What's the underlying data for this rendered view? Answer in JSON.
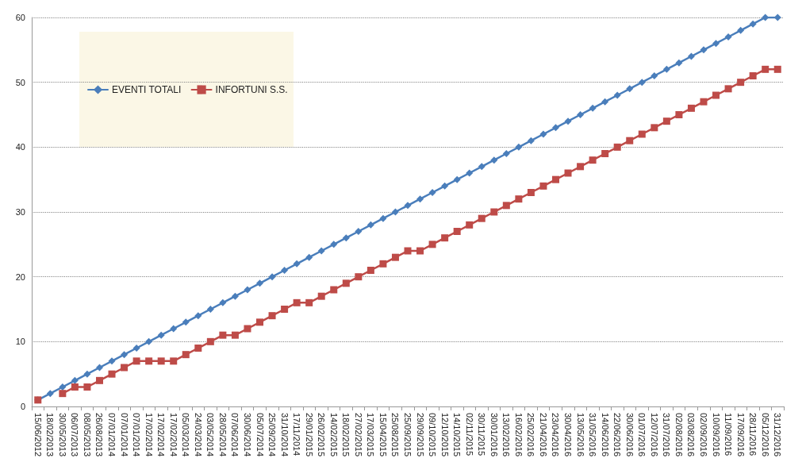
{
  "chart_data": {
    "type": "line",
    "categories": [
      "15/06/2012",
      "18/02/2013",
      "30/05/2013",
      "06/07/2013",
      "08/05/2013",
      "26/08/2013",
      "07/01/2014",
      "07/01/2014",
      "07/01/2014",
      "17/02/2014",
      "17/02/2014",
      "17/02/2014",
      "05/03/2014",
      "24/03/2014",
      "03/05/2014",
      "28/05/2014",
      "07/06/2014",
      "30/06/2014",
      "05/07/2014",
      "25/09/2014",
      "31/10/2014",
      "17/11/2014",
      "29/01/2015",
      "26/02/2015",
      "14/02/2015",
      "18/02/2015",
      "27/02/2015",
      "17/03/2015",
      "15/04/2015",
      "25/08/2015",
      "25/09/2015",
      "29/09/2015",
      "09/10/2015",
      "12/10/2015",
      "14/10/2015",
      "02/11/2015",
      "30/11/2015",
      "30/01/2016",
      "13/02/2016",
      "16/02/2016",
      "25/02/2016",
      "21/04/2016",
      "23/04/2016",
      "30/04/2016",
      "13/05/2016",
      "31/05/2016",
      "14/06/2016",
      "22/06/2016",
      "30/06/2016",
      "01/07/2016",
      "12/07/2016",
      "31/07/2016",
      "02/08/2016",
      "03/08/2016",
      "02/09/2016",
      "10/09/2016",
      "11/09/2016",
      "17/09/2016",
      "28/11/2016",
      "05/12/2016",
      "31/12/2016"
    ],
    "series": [
      {
        "name": "EVENTI TOTALI",
        "color": "#4a7ebb",
        "marker": "diamond",
        "values": [
          1,
          2,
          3,
          4,
          5,
          6,
          7,
          8,
          9,
          10,
          11,
          12,
          13,
          14,
          15,
          16,
          17,
          18,
          19,
          20,
          21,
          22,
          23,
          24,
          25,
          26,
          27,
          28,
          29,
          30,
          31,
          32,
          33,
          34,
          35,
          36,
          37,
          38,
          39,
          40,
          41,
          42,
          43,
          44,
          45,
          46,
          47,
          48,
          49,
          50,
          51,
          52,
          53,
          54,
          55,
          56,
          57,
          58,
          59,
          60,
          60
        ]
      },
      {
        "name": "INFORTUNI S.S.",
        "color": "#be4b48",
        "marker": "square",
        "values": [
          1,
          null,
          2,
          3,
          3,
          4,
          5,
          6,
          7,
          7,
          7,
          7,
          8,
          9,
          10,
          11,
          11,
          12,
          13,
          14,
          15,
          16,
          16,
          17,
          18,
          19,
          20,
          21,
          22,
          23,
          24,
          24,
          25,
          26,
          27,
          28,
          29,
          30,
          31,
          32,
          33,
          34,
          35,
          36,
          37,
          38,
          39,
          40,
          41,
          42,
          43,
          44,
          45,
          46,
          47,
          48,
          49,
          50,
          51,
          52,
          52
        ]
      }
    ],
    "ylim": [
      0,
      60
    ],
    "yticks": [
      0,
      10,
      20,
      30,
      40,
      50,
      60
    ],
    "grid": "y",
    "legend": "top left",
    "line_style": "solid"
  }
}
